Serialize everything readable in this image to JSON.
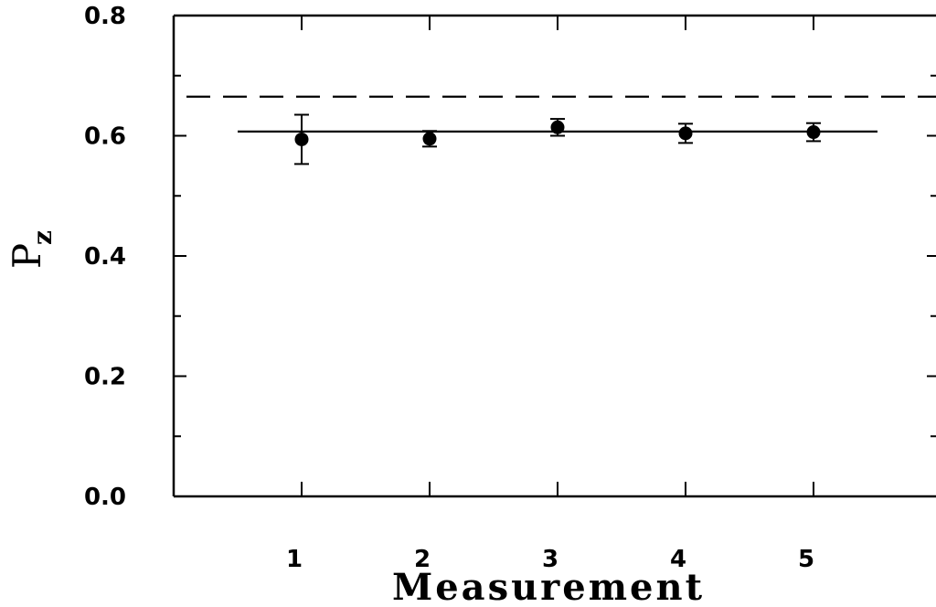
{
  "chart_data": {
    "type": "scatter",
    "xlabel": "Measurement",
    "ylabel": "P",
    "ylabel_subscript": "z",
    "xlim": [
      0,
      6
    ],
    "ylim": [
      0.0,
      0.8
    ],
    "x_ticks": [
      1,
      2,
      3,
      4,
      5
    ],
    "x_tick_labels": [
      "1",
      "2",
      "3",
      "4",
      "5"
    ],
    "y_ticks": [
      0.0,
      0.2,
      0.4,
      0.6,
      0.8
    ],
    "y_tick_labels": [
      "0.0",
      "0.2",
      "0.4",
      "0.6",
      "0.8"
    ],
    "y_minor_ticks": [
      0.1,
      0.3,
      0.5,
      0.7
    ],
    "grid": false,
    "series": [
      {
        "x": [
          1,
          2,
          3,
          4,
          5
        ],
        "y": [
          0.594,
          0.595,
          0.614,
          0.604,
          0.606
        ],
        "yerr_low": [
          0.041,
          0.013,
          0.014,
          0.016,
          0.015
        ],
        "yerr_high": [
          0.041,
          0.013,
          0.014,
          0.016,
          0.015
        ],
        "marker": "filled-circle",
        "color": "#000000"
      }
    ],
    "reference_lines": [
      {
        "style": "solid",
        "y": 0.607,
        "x_range": [
          0.5,
          5.5
        ]
      },
      {
        "style": "dashed",
        "y": 0.665,
        "x_range": [
          0.1,
          6.0
        ]
      }
    ]
  }
}
